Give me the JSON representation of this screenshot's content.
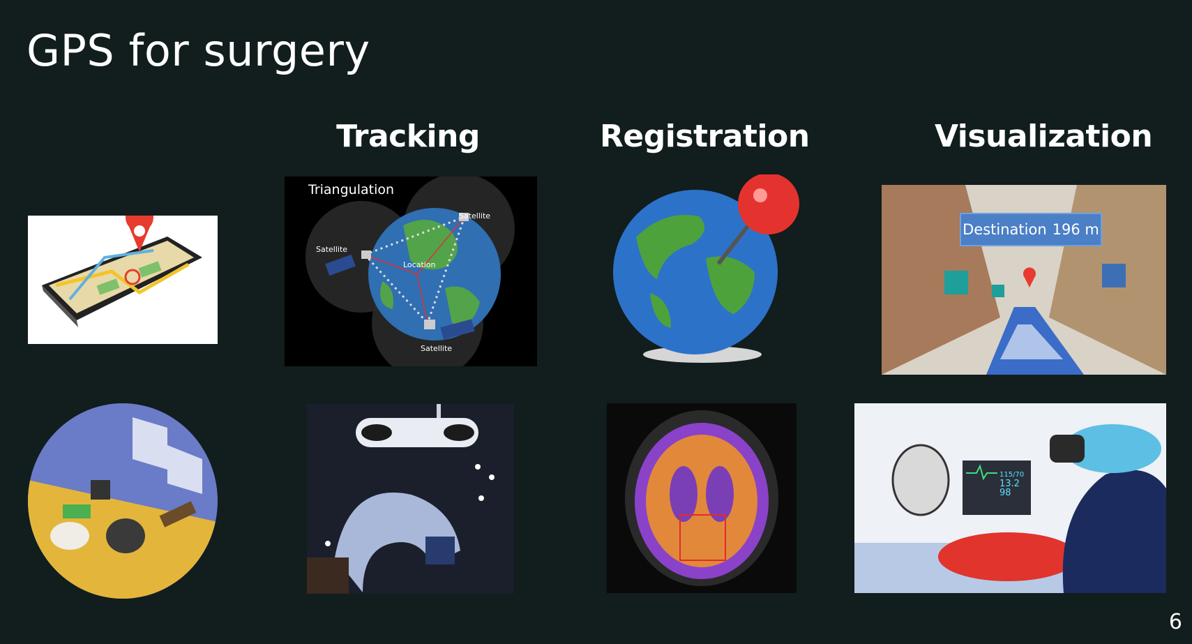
{
  "slide": {
    "title": "GPS for surgery",
    "page_number": "6"
  },
  "columns": [
    {
      "heading": "Tracking"
    },
    {
      "heading": "Registration"
    },
    {
      "heading": "Visualization"
    }
  ],
  "images": {
    "triangulation": {
      "title": "Triangulation",
      "labels": [
        "Satellite",
        "Satellite",
        "Satellite",
        "Location"
      ]
    },
    "ar_street": {
      "destination_label": "Destination",
      "destination_distance": "196 m"
    },
    "hologram_monitor": {
      "values": [
        "115/70",
        "13.2",
        "98"
      ]
    }
  },
  "colors": {
    "background": "#121d1d",
    "text": "#ffffff"
  }
}
